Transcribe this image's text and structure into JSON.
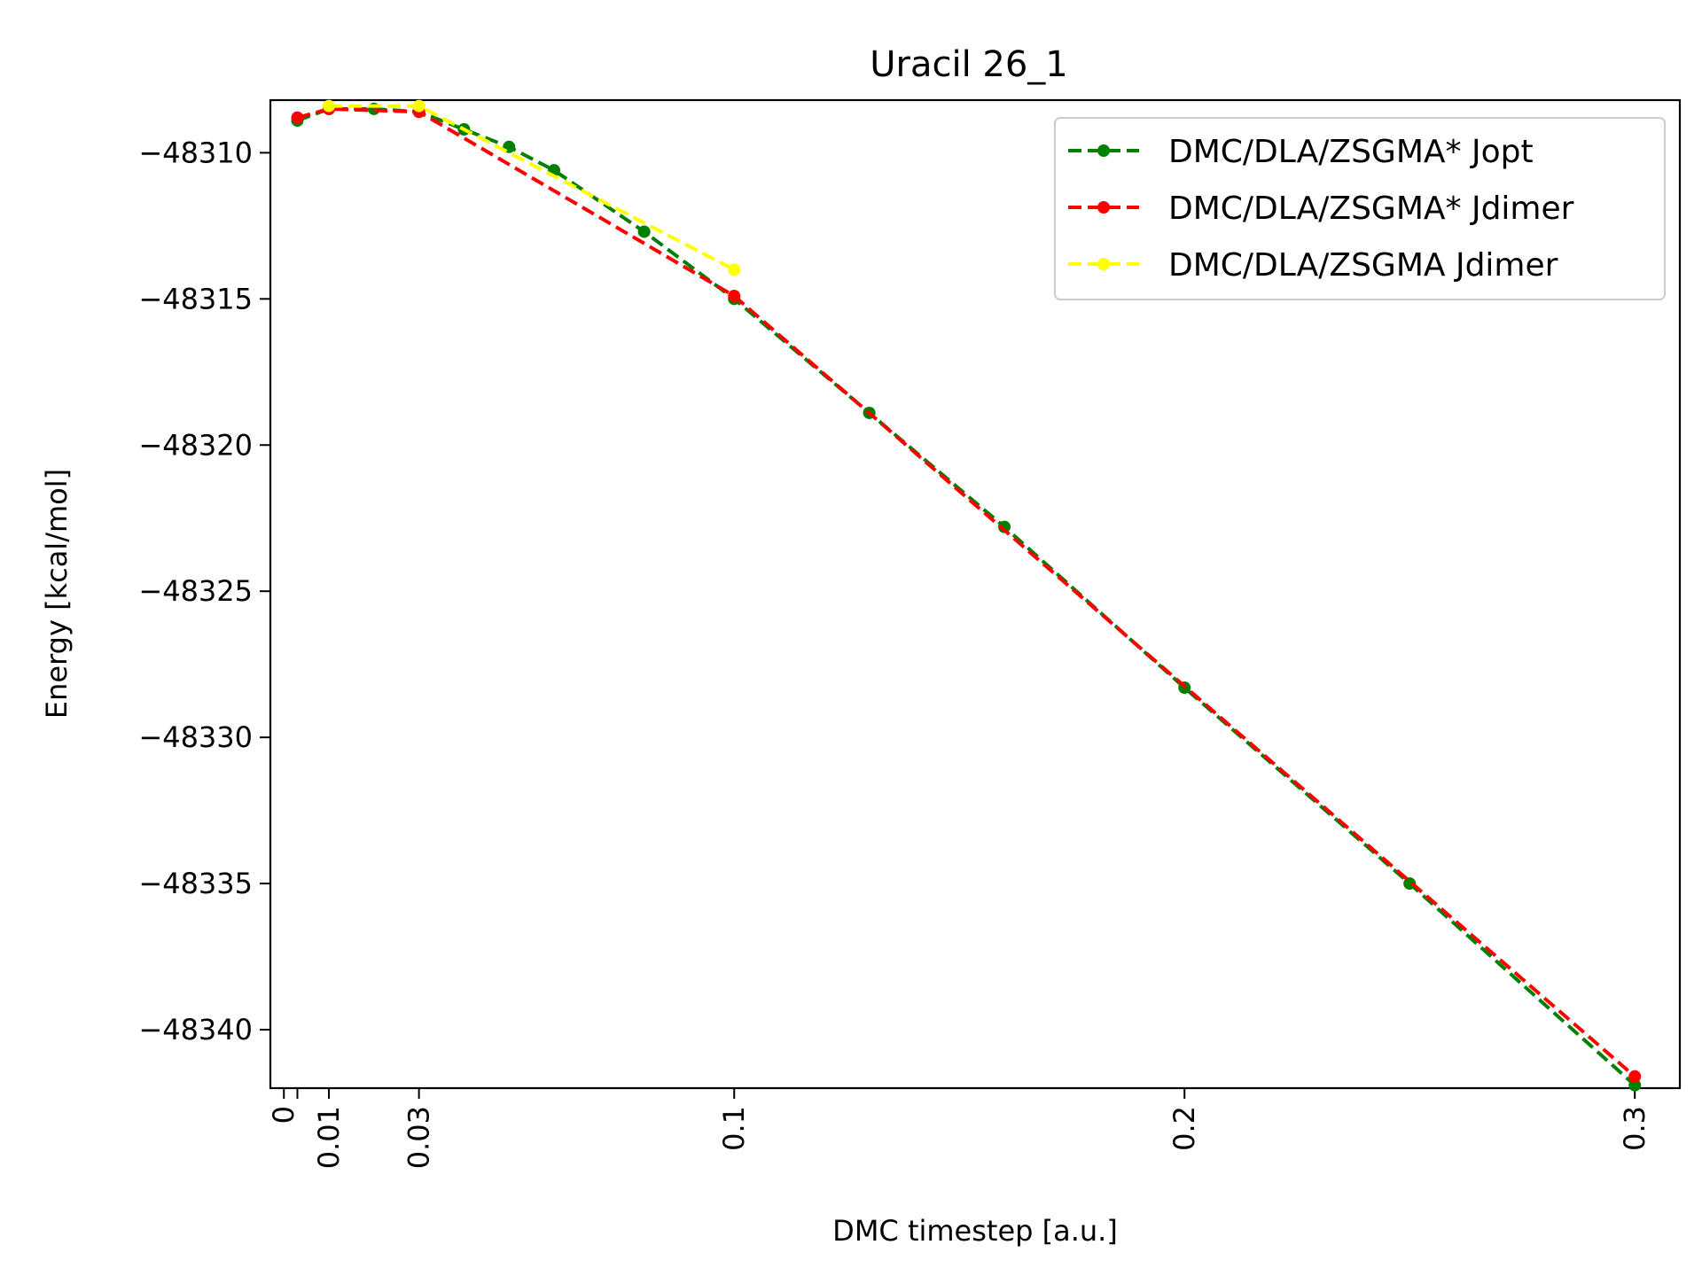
{
  "chart_data": {
    "type": "line",
    "title": "Uracil 26_1",
    "xlabel": "DMC timestep [a.u.]",
    "ylabel": "Energy [kcal/mol]",
    "xlim": [
      -0.003,
      0.31
    ],
    "ylim": [
      -48342.0,
      -48308.2
    ],
    "x_ticks": [
      0,
      0.003,
      0.01,
      0.03,
      0.1,
      0.2,
      0.3
    ],
    "x_tick_labels": [
      "0",
      "",
      "0.01",
      "0.03",
      "0.1",
      "0.2",
      "0.3"
    ],
    "y_ticks": [
      -48310,
      -48315,
      -48320,
      -48325,
      -48330,
      -48335,
      -48340
    ],
    "y_tick_labels": [
      "−48310",
      "−48315",
      "−48320",
      "−48325",
      "−48330",
      "−48335",
      "−48340"
    ],
    "grid": false,
    "legend_position": "top-right",
    "series": [
      {
        "name": "DMC/DLA/ZSGMA* Jopt",
        "color": "#008000",
        "x": [
          0.003,
          0.01,
          0.02,
          0.03,
          0.04,
          0.05,
          0.06,
          0.08,
          0.1,
          0.13,
          0.16,
          0.2,
          0.25,
          0.3
        ],
        "y": [
          -48308.9,
          -48308.5,
          -48308.5,
          -48308.6,
          -48309.2,
          -48309.8,
          -48310.6,
          -48312.7,
          -48315.0,
          -48318.9,
          -48322.8,
          -48328.3,
          -48335.0,
          -48341.9
        ]
      },
      {
        "name": "DMC/DLA/ZSGMA* Jdimer",
        "color": "#ff0000",
        "x": [
          0.003,
          0.01,
          0.03,
          0.1,
          0.3
        ],
        "y": [
          -48308.8,
          -48308.5,
          -48308.6,
          -48314.9,
          -48341.6
        ]
      },
      {
        "name": "DMC/DLA/ZSGMA Jdimer",
        "color": "#ffff00",
        "x": [
          0.01,
          0.03,
          0.1
        ],
        "y": [
          -48308.4,
          -48308.4,
          -48314.0
        ]
      }
    ]
  }
}
